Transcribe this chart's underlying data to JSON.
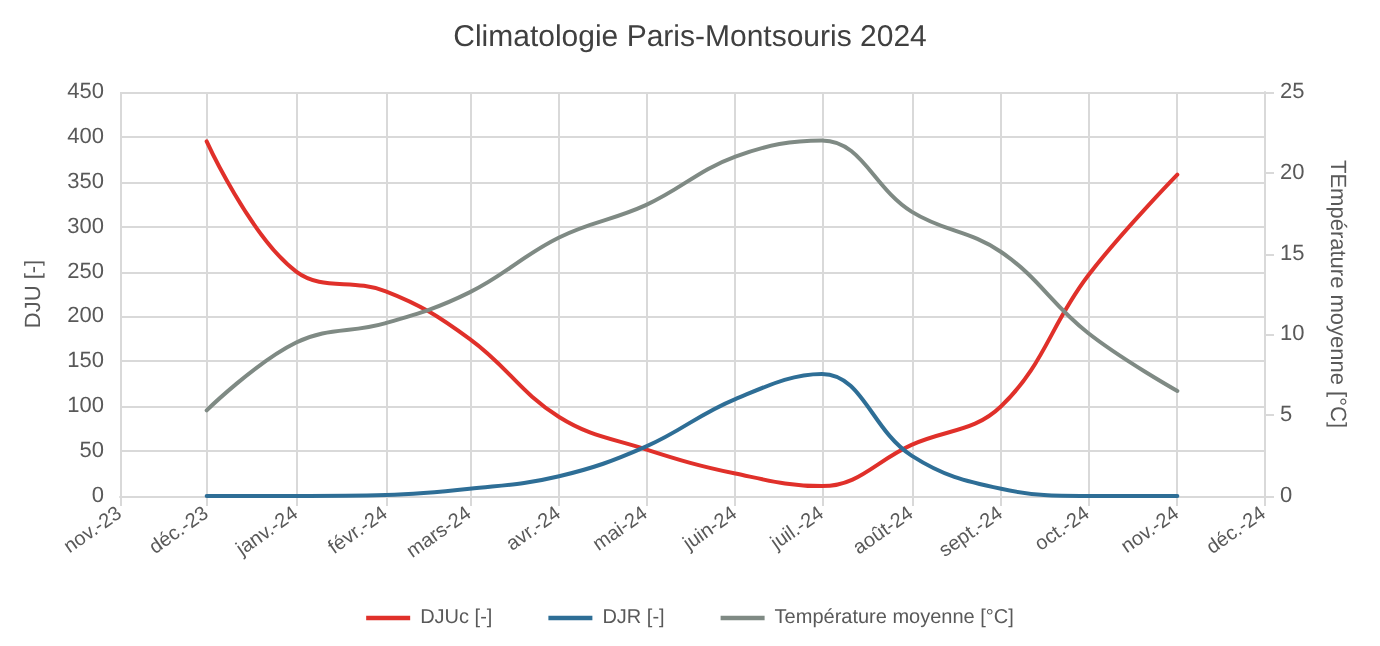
{
  "chart_data": {
    "type": "line",
    "title": "Climatologie Paris-Montsouris 2024",
    "ylabel": "DJU [-]",
    "y2label": "TEmpérature moyenne [°C]",
    "x": [
      "2023-12",
      "2024-01",
      "2024-02",
      "2024-03",
      "2024-04",
      "2024-05",
      "2024-06",
      "2024-07",
      "2024-08",
      "2024-09",
      "2024-10",
      "2024-11"
    ],
    "series": [
      {
        "name": "DJUc [-]",
        "color": "#e0302a",
        "values": [
          395,
          250,
          228,
          175,
          88,
          52,
          25,
          11,
          57,
          100,
          245,
          358
        ]
      },
      {
        "name": "DJR [-]",
        "color": "#2e6e96",
        "values": [
          0,
          0,
          1,
          8,
          22,
          55,
          108,
          136,
          45,
          8,
          0,
          0
        ]
      },
      {
        "name": "Température moyenne [°C]",
        "color": "#7f8a84",
        "axis": "y2",
        "values": [
          5.3,
          9.5,
          10.7,
          12.6,
          16,
          18,
          21,
          22,
          17.6,
          15.1,
          10.1,
          6.5
        ]
      }
    ],
    "xlim": [
      "2023-11",
      "2024-12"
    ],
    "xticks": [
      {
        "value": "2023-11",
        "label": "nov.-23"
      },
      {
        "value": "2023-12",
        "label": "déc.-23"
      },
      {
        "value": "2024-01",
        "label": "janv.-24"
      },
      {
        "value": "2024-02",
        "label": "févr.-24"
      },
      {
        "value": "2024-03",
        "label": "mars-24"
      },
      {
        "value": "2024-04",
        "label": "avr.-24"
      },
      {
        "value": "2024-05",
        "label": "mai-24"
      },
      {
        "value": "2024-06",
        "label": "juin-24"
      },
      {
        "value": "2024-07",
        "label": "juil.-24"
      },
      {
        "value": "2024-08",
        "label": "août-24"
      },
      {
        "value": "2024-09",
        "label": "sept.-24"
      },
      {
        "value": "2024-10",
        "label": "oct.-24"
      },
      {
        "value": "2024-11",
        "label": "nov.-24"
      },
      {
        "value": "2024-12",
        "label": "déc.-24"
      }
    ],
    "ylim": [
      0,
      450
    ],
    "yticks": [
      0,
      50,
      100,
      150,
      200,
      250,
      300,
      350,
      400,
      450
    ],
    "y2lim": [
      0,
      25
    ],
    "y2ticks": [
      0,
      5,
      10,
      15,
      20,
      25
    ],
    "grid": true,
    "legend": "bottom",
    "marker": "none",
    "line_style": "solid"
  }
}
